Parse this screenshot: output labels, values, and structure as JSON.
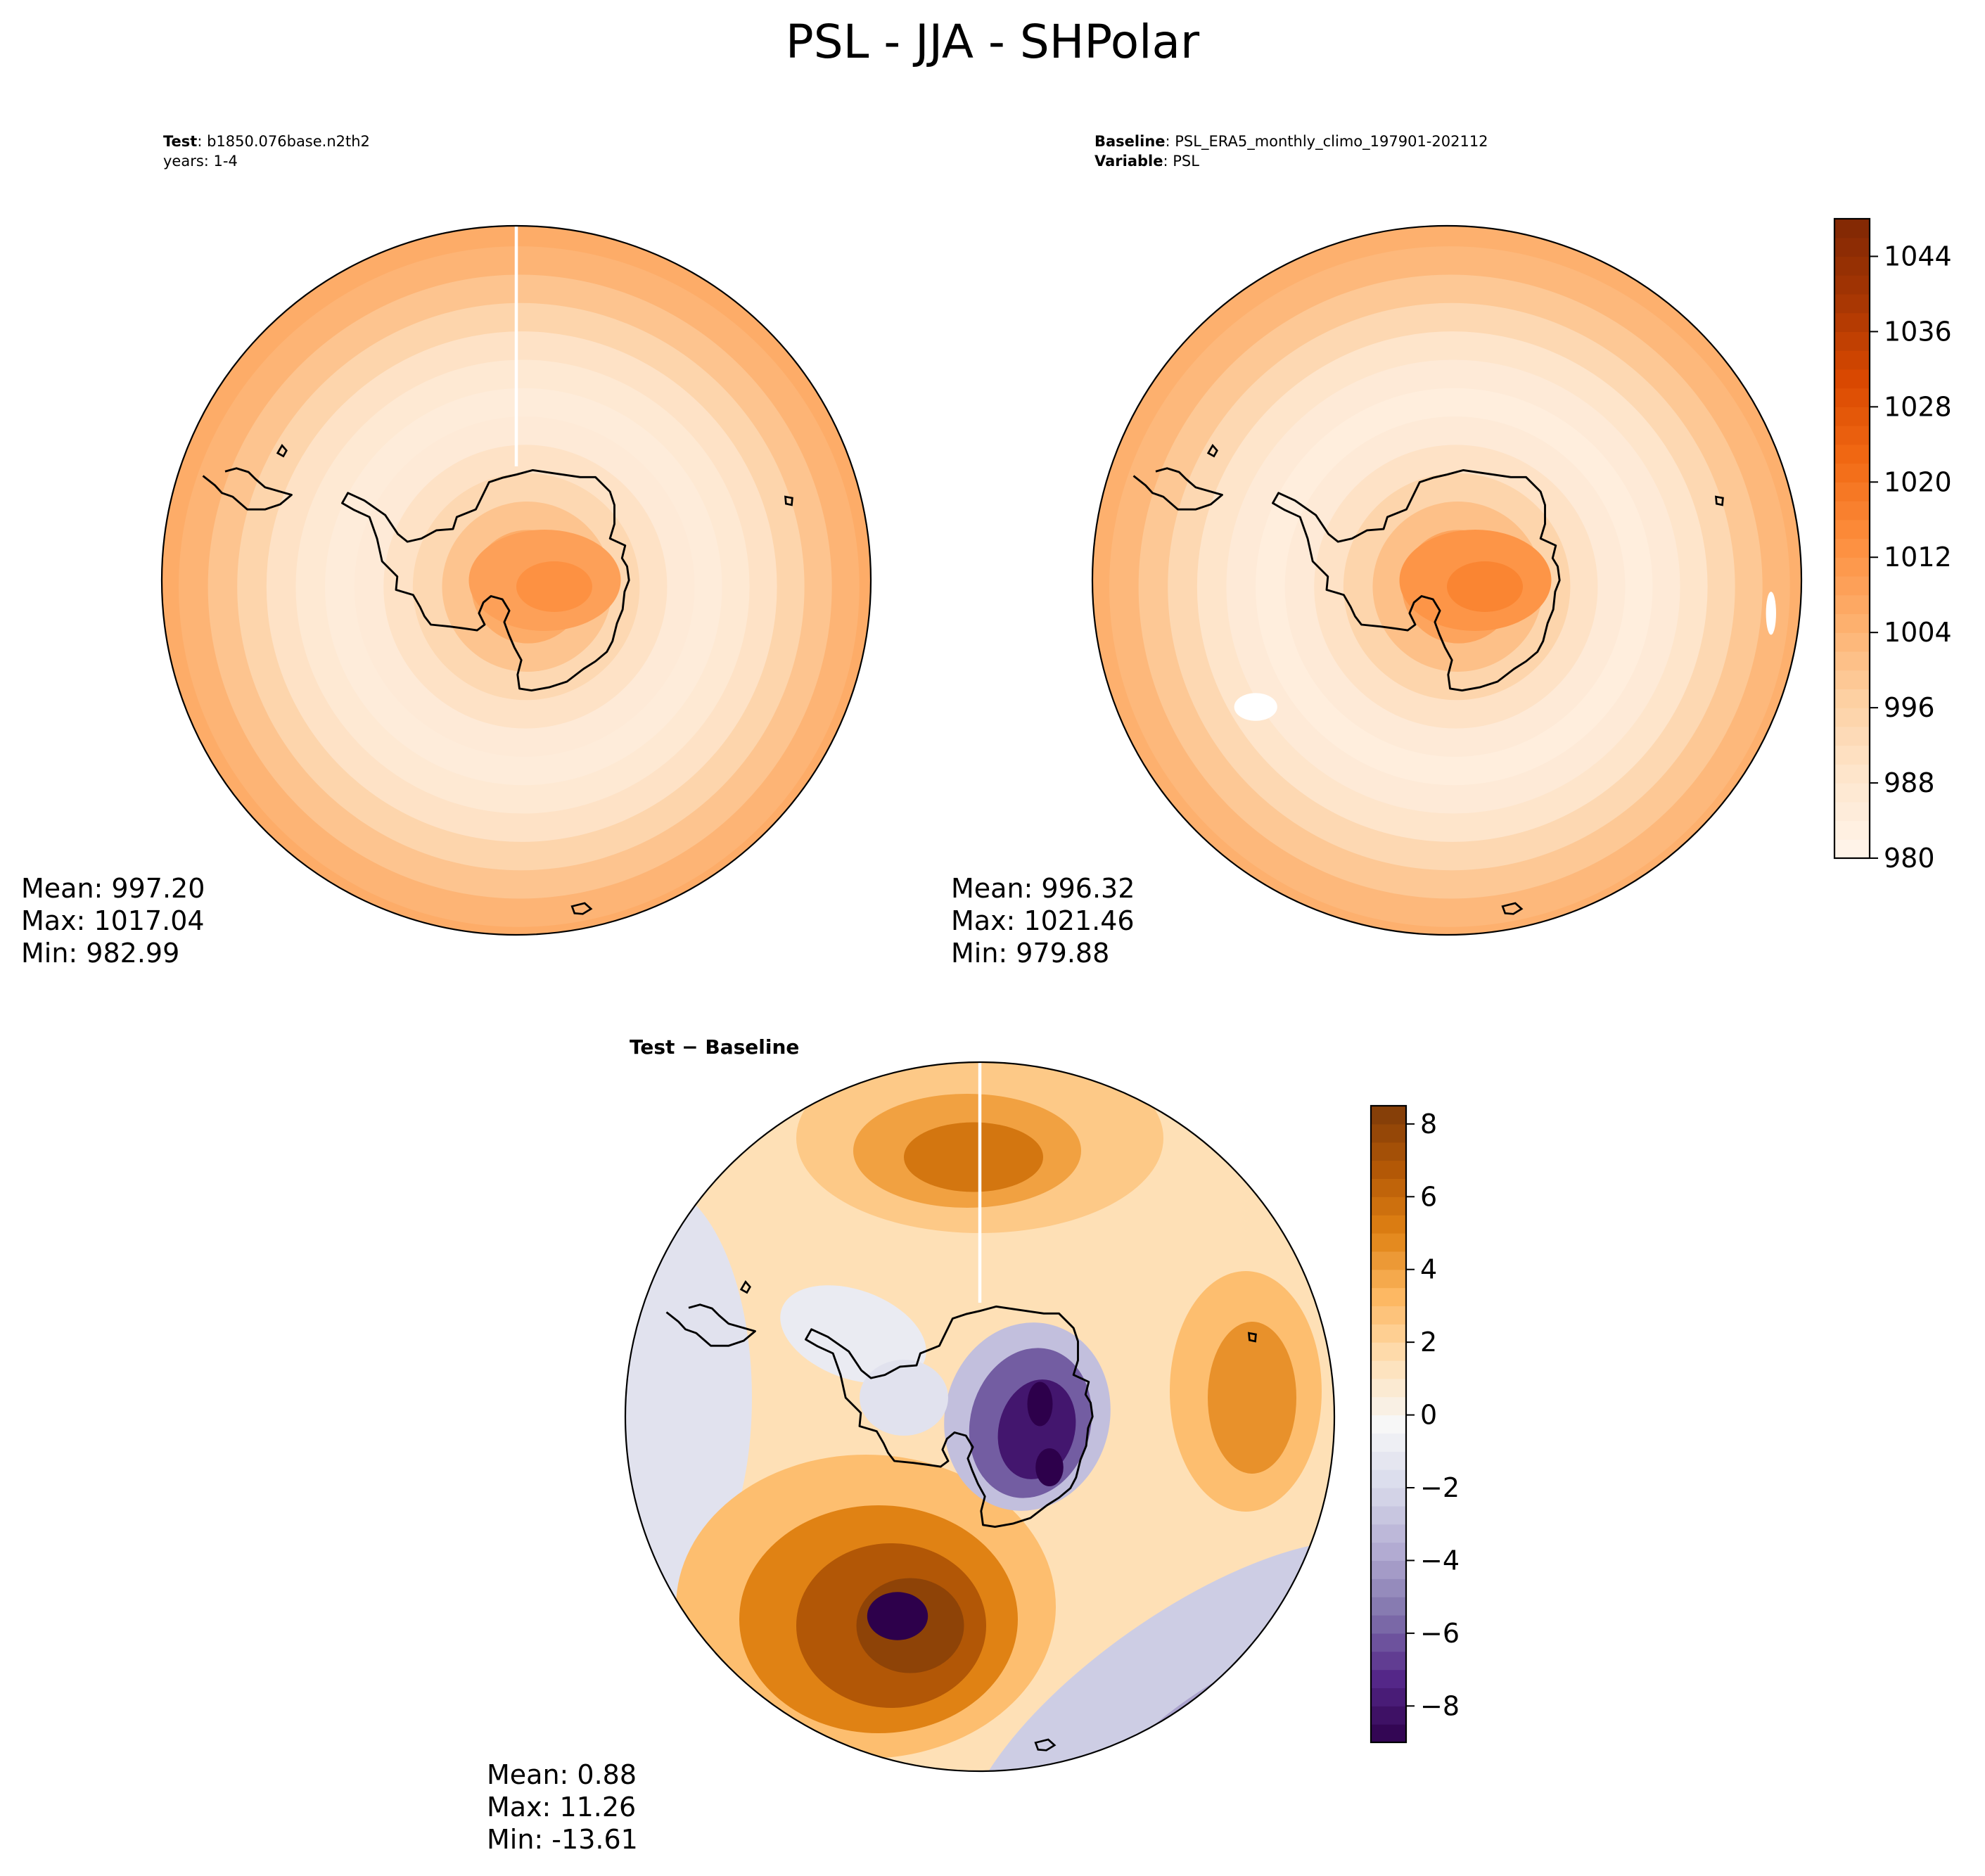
{
  "figure": {
    "title": "PSL - JJA - SHPolar"
  },
  "chart_data": [
    {
      "type": "heatmap",
      "panel": "test",
      "header": {
        "line1_bold": "Test",
        "line1_rest": ": b1850.076base.n2th2",
        "line2": "years: 1-4"
      },
      "projection": "south-polar-stereographic",
      "coastlines": true,
      "stats": {
        "mean": "Mean: 997.20",
        "max": "Max: 1017.04",
        "min": "Min: 982.99"
      },
      "colormap": "Oranges",
      "field_range": [
        982.99,
        1017.04
      ],
      "pole_value": 1013,
      "ring_values": [
        1012,
        1006,
        1000,
        994,
        990,
        986,
        985,
        987,
        990,
        995,
        1000,
        1004,
        1006,
        1007
      ]
    },
    {
      "type": "heatmap",
      "panel": "baseline",
      "header": {
        "line1_bold": "Baseline",
        "line1_rest": ": PSL_ERA5_monthly_climo_197901-202112",
        "line2_bold": "Variable",
        "line2_rest": ": PSL"
      },
      "projection": "south-polar-stereographic",
      "coastlines": true,
      "stats": {
        "mean": "Mean: 996.32",
        "max": "Max: 1021.46",
        "min": "Min: 979.88"
      },
      "colormap": "Oranges",
      "field_range": [
        979.88,
        1021.46
      ],
      "pole_value": 1016,
      "ring_values": [
        1015,
        1008,
        1001,
        995,
        990,
        986,
        984,
        986,
        989,
        994,
        999,
        1003,
        1005,
        1006
      ],
      "colorbar": {
        "min": 980,
        "max": 1048,
        "levels": 34,
        "ticks": [
          980,
          988,
          996,
          1004,
          1012,
          1020,
          1028,
          1036,
          1044
        ],
        "tick_labels": [
          "980",
          "988",
          "996",
          "1004",
          "1012",
          "1020",
          "1028",
          "1036",
          "1044"
        ]
      }
    },
    {
      "type": "heatmap",
      "panel": "difference",
      "header": {
        "line1_bold": "Test − Baseline"
      },
      "projection": "south-polar-stereographic",
      "coastlines": true,
      "stats": {
        "mean": "Mean:  0.88",
        "max": "Max: 11.26",
        "min": "Min: -13.61"
      },
      "colormap": "PuOr_r",
      "field_range": [
        -13.61,
        11.26
      ],
      "colorbar": {
        "min": -9,
        "max": 8.5,
        "levels": 35,
        "ticks": [
          -8,
          -6,
          -4,
          -2,
          0,
          2,
          4,
          6,
          8
        ],
        "tick_labels": [
          "−8",
          "−6",
          "−4",
          "−2",
          "0",
          "2",
          "4",
          "6",
          "8"
        ]
      }
    }
  ]
}
